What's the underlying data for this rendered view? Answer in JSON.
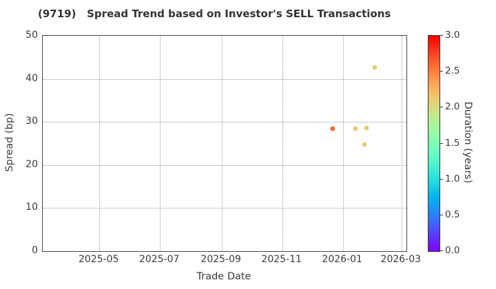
{
  "title": "(9719)   Spread Trend based on Investor's SELL Transactions",
  "colors": {
    "background": "#ffffff",
    "title": "#333333",
    "spine": "#444444",
    "grid": "#9a9a9a",
    "tick_label": "#3a3a3a",
    "point_orange": "#f25c33",
    "point_yellow": "#e3ce72"
  },
  "chart_data": {
    "type": "scatter",
    "title": "(9719)   Spread Trend based on Investor's SELL Transactions",
    "xlabel": "Trade Date",
    "ylabel": "Spread (bp)",
    "grid": "dotted",
    "x_axis": {
      "start_date": "2025-03-05",
      "end_date": "2026-03-06",
      "ticks": [
        {
          "date": "2025-05-01",
          "label": "2025-05"
        },
        {
          "date": "2025-07-01",
          "label": "2025-07"
        },
        {
          "date": "2025-09-01",
          "label": "2025-09"
        },
        {
          "date": "2025-11-01",
          "label": "2025-11"
        },
        {
          "date": "2026-01-01",
          "label": "2026-01"
        },
        {
          "date": "2026-03-01",
          "label": "2026-03"
        }
      ]
    },
    "y_axis": {
      "min": 0,
      "max": 50,
      "ticks": [
        0,
        10,
        20,
        30,
        40,
        50
      ]
    },
    "points": [
      {
        "date": "2025-12-22",
        "spread_bp": 28.4,
        "duration_years": 2.6
      },
      {
        "date": "2026-01-14",
        "spread_bp": 28.4,
        "duration_years": 2.1
      },
      {
        "date": "2026-01-23",
        "spread_bp": 24.8,
        "duration_years": 2.1
      },
      {
        "date": "2026-01-25",
        "spread_bp": 28.6,
        "duration_years": 2.1
      },
      {
        "date": "2026-02-02",
        "spread_bp": 42.6,
        "duration_years": 2.1
      }
    ],
    "colorbar": {
      "label": "Duration (years)",
      "min": 0.0,
      "max": 3.0,
      "ticks": [
        "0.0",
        "0.5",
        "1.0",
        "1.5",
        "2.0",
        "2.5",
        "3.0"
      ],
      "colormap": "rainbow"
    }
  }
}
